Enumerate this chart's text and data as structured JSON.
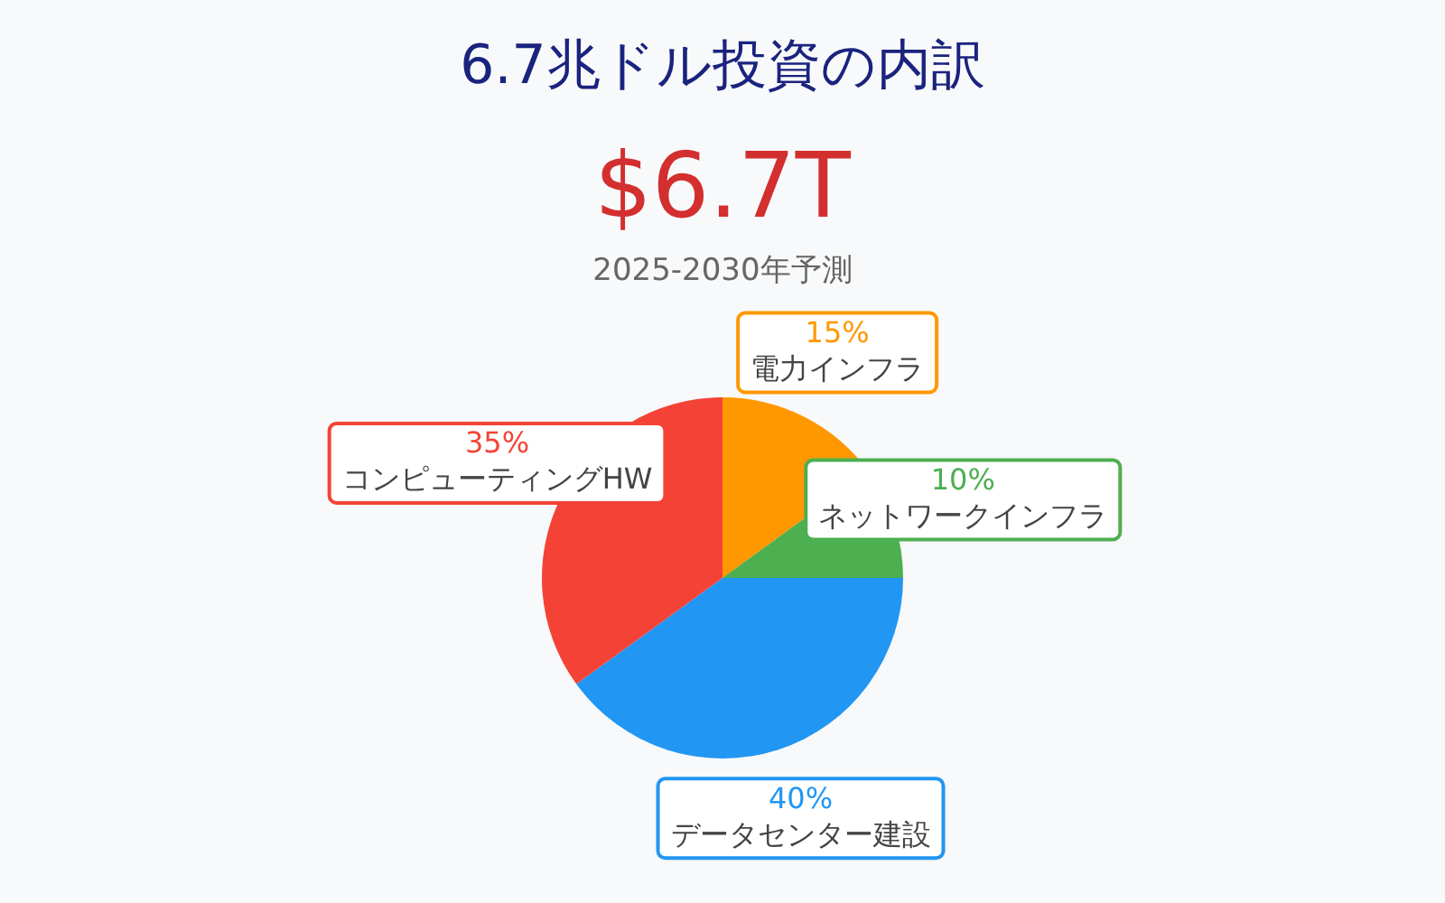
{
  "chart_data": {
    "type": "pie",
    "title": "6.7兆ドル投資の内訳",
    "annotations": [
      "$6.7T"
    ],
    "subtitle": "2025-2030年予測",
    "categories": [
      "電力インフラ",
      "ネットワークインフラ",
      "データセンター建設",
      "コンピューティングHW"
    ],
    "values": [
      15,
      10,
      40,
      35
    ],
    "colors": [
      "#ff9800",
      "#4caf50",
      "#2196f3",
      "#f44336"
    ],
    "value_labels": [
      "15%",
      "10%",
      "40%",
      "35%"
    ],
    "legend": false
  }
}
